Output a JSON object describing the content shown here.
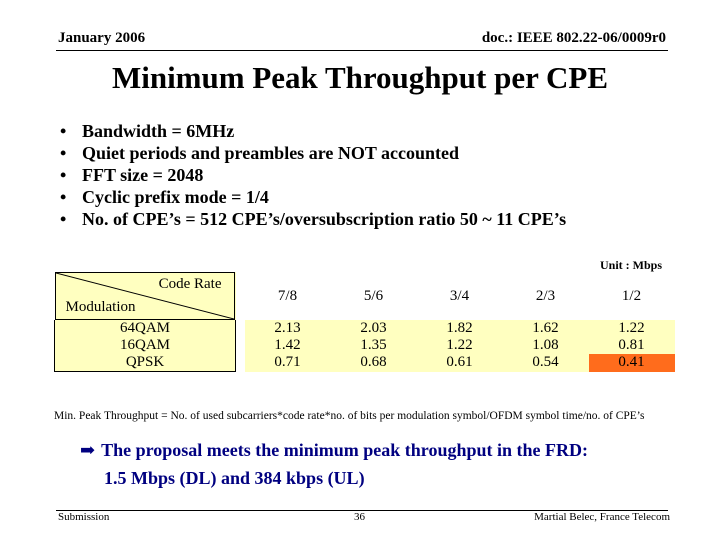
{
  "header": {
    "date": "January 2006",
    "doc_id": "doc.: IEEE 802.22-06/0009r0"
  },
  "title": "Minimum Peak Throughput per CPE",
  "bullets": [
    {
      "marker": "•",
      "text": "Bandwidth = 6MHz"
    },
    {
      "marker": "•",
      "text": "Quiet periods and preambles are NOT accounted"
    },
    {
      "marker": "•",
      "text": "FFT size = 2048"
    },
    {
      "marker": "•",
      "text": "Cyclic prefix mode = 1/4"
    },
    {
      "marker": "•",
      "text": "No. of CPE’s = 512 CPE’s/oversubscription ratio 50 ~ 11 CPE’s"
    }
  ],
  "table": {
    "unit": "Unit : Mbps",
    "corner_top": "Code Rate",
    "corner_bottom": "Modulation",
    "code_rates": [
      "7/8",
      "5/6",
      "3/4",
      "2/3",
      "1/2"
    ],
    "rows": [
      {
        "modulation": "64QAM",
        "values": [
          "2.13",
          "2.03",
          "1.82",
          "1.62",
          "1.22"
        ]
      },
      {
        "modulation": "16QAM",
        "values": [
          "1.42",
          "1.35",
          "1.22",
          "1.08",
          "0.81"
        ]
      },
      {
        "modulation": "QPSK",
        "values": [
          "0.71",
          "0.68",
          "0.61",
          "0.54",
          "0.41"
        ]
      }
    ],
    "highlight_color": "#ff6c1c",
    "cell_color": "#ffffc0"
  },
  "formula": "Min. Peak Throughput = No. of used subcarriers*code rate*no. of bits per modulation symbol/OFDM symbol time/no. of CPE’s",
  "proposal": {
    "arrow_icon": "➡",
    "line1": "The proposal meets the minimum peak throughput in the FRD:",
    "line2": "1.5 Mbps (DL) and 384 kbps (UL)",
    "color": "#000080"
  },
  "footer": {
    "left": "Submission",
    "page": "36",
    "author": "Martial Belec, France Telecom"
  }
}
